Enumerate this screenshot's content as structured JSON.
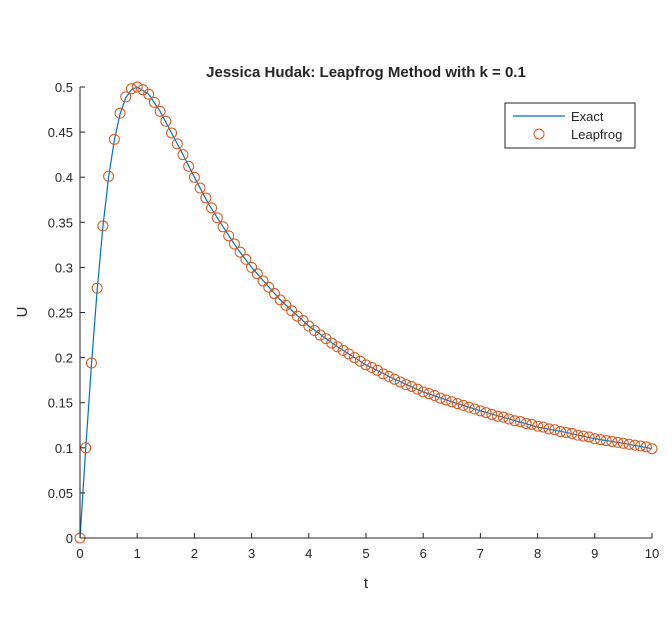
{
  "chart_data": {
    "type": "line",
    "title": "Jessica Hudak: Leapfrog Method with k = 0.1",
    "xlabel": "t",
    "ylabel": "U",
    "xlim": [
      0,
      10
    ],
    "ylim": [
      0,
      0.5
    ],
    "xticks": [
      0,
      1,
      2,
      3,
      4,
      5,
      6,
      7,
      8,
      9,
      10
    ],
    "xtick_labels": [
      "0",
      "1",
      "2",
      "3",
      "4",
      "5",
      "6",
      "7",
      "8",
      "9",
      "10"
    ],
    "yticks": [
      0,
      0.05,
      0.1,
      0.15,
      0.2,
      0.25,
      0.3,
      0.35,
      0.4,
      0.45,
      0.5
    ],
    "ytick_labels": [
      "0",
      "0.05",
      "0.1",
      "0.15",
      "0.2",
      "0.25",
      "0.3",
      "0.35",
      "0.4",
      "0.45",
      "0.5"
    ],
    "grid": false,
    "legend_position": "top-right",
    "series": [
      {
        "name": "Exact",
        "style": "line",
        "color": "#0072BD",
        "x": [
          0,
          0.1,
          0.2,
          0.3,
          0.4,
          0.5,
          0.6,
          0.7,
          0.8,
          0.9,
          1.0,
          1.2,
          1.4,
          1.6,
          1.8,
          2.0,
          2.25,
          2.5,
          2.75,
          3.0,
          3.5,
          4.0,
          4.5,
          5.0,
          5.5,
          6.0,
          6.5,
          7.0,
          7.5,
          8.0,
          8.5,
          9.0,
          9.5,
          10.0
        ],
        "y": [
          0,
          0.099,
          0.192,
          0.275,
          0.345,
          0.4,
          0.441,
          0.47,
          0.488,
          0.497,
          0.5,
          0.492,
          0.473,
          0.449,
          0.425,
          0.4,
          0.37,
          0.345,
          0.321,
          0.3,
          0.264,
          0.235,
          0.212,
          0.192,
          0.176,
          0.162,
          0.151,
          0.141,
          0.132,
          0.123,
          0.117,
          0.11,
          0.105,
          0.099
        ]
      },
      {
        "name": "Leapfrog",
        "style": "markers",
        "marker": "circle",
        "color": "#D95319",
        "x": [
          0,
          0.1,
          0.2,
          0.3,
          0.4,
          0.5,
          0.6,
          0.7,
          0.8,
          0.9,
          1.0,
          1.1,
          1.2,
          1.3,
          1.4,
          1.5,
          1.6,
          1.7,
          1.8,
          1.9,
          2.0,
          2.1,
          2.2,
          2.3,
          2.4,
          2.5,
          2.6,
          2.7,
          2.8,
          2.9,
          3.0,
          3.1,
          3.2,
          3.3,
          3.4,
          3.5,
          3.6,
          3.7,
          3.8,
          3.9,
          4.0,
          4.1,
          4.2,
          4.3,
          4.4,
          4.5,
          4.6,
          4.7,
          4.8,
          4.9,
          5.0,
          5.1,
          5.2,
          5.3,
          5.4,
          5.5,
          5.6,
          5.7,
          5.8,
          5.9,
          6.0,
          6.1,
          6.2,
          6.3,
          6.4,
          6.5,
          6.6,
          6.7,
          6.8,
          6.9,
          7.0,
          7.1,
          7.2,
          7.3,
          7.4,
          7.5,
          7.6,
          7.7,
          7.8,
          7.9,
          8.0,
          8.1,
          8.2,
          8.3,
          8.4,
          8.5,
          8.6,
          8.7,
          8.8,
          8.9,
          9.0,
          9.1,
          9.2,
          9.3,
          9.4,
          9.5,
          9.6,
          9.7,
          9.8,
          9.9,
          10.0
        ],
        "y": [
          0,
          0.1,
          0.194,
          0.277,
          0.346,
          0.401,
          0.442,
          0.471,
          0.489,
          0.498,
          0.5,
          0.497,
          0.492,
          0.483,
          0.473,
          0.462,
          0.449,
          0.437,
          0.425,
          0.412,
          0.4,
          0.388,
          0.377,
          0.366,
          0.355,
          0.345,
          0.335,
          0.326,
          0.317,
          0.309,
          0.3,
          0.293,
          0.285,
          0.278,
          0.271,
          0.264,
          0.258,
          0.252,
          0.246,
          0.241,
          0.235,
          0.23,
          0.225,
          0.221,
          0.216,
          0.212,
          0.208,
          0.204,
          0.2,
          0.196,
          0.192,
          0.189,
          0.186,
          0.182,
          0.179,
          0.176,
          0.173,
          0.17,
          0.168,
          0.165,
          0.162,
          0.16,
          0.158,
          0.155,
          0.153,
          0.151,
          0.149,
          0.147,
          0.145,
          0.143,
          0.141,
          0.139,
          0.137,
          0.135,
          0.134,
          0.132,
          0.13,
          0.129,
          0.127,
          0.126,
          0.124,
          0.123,
          0.121,
          0.12,
          0.118,
          0.117,
          0.116,
          0.114,
          0.113,
          0.112,
          0.11,
          0.109,
          0.108,
          0.107,
          0.106,
          0.105,
          0.104,
          0.103,
          0.102,
          0.101,
          0.099
        ]
      }
    ]
  }
}
